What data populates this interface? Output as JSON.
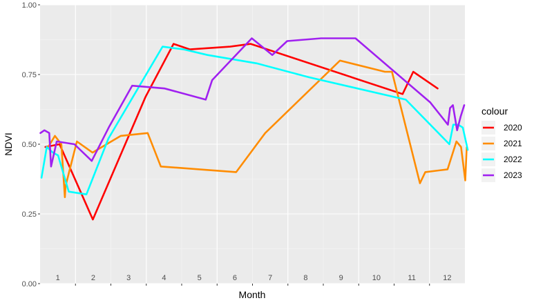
{
  "chart_data": {
    "type": "line",
    "xlabel": "Month",
    "ylabel": "NDVI",
    "xlim": [
      0.5,
      12.5
    ],
    "ylim": [
      0,
      1
    ],
    "y_ticks": [
      0.0,
      0.25,
      0.5,
      0.75,
      1.0
    ],
    "y_tick_labels": [
      "0.00",
      "0.25",
      "0.50",
      "0.75",
      "1.00"
    ],
    "x_ticks": [
      1,
      2,
      3,
      4,
      5,
      6,
      7,
      8,
      9,
      10,
      11,
      12
    ],
    "x_tick_labels": [
      "1",
      "2",
      "3",
      "4",
      "5",
      "6",
      "7",
      "8",
      "9",
      "10",
      "11",
      "12"
    ],
    "grid": true,
    "legend": {
      "title": "colour",
      "position": "right"
    },
    "series": [
      {
        "name": "2020",
        "color": "#ff0000",
        "x": [
          0.65,
          1.05,
          1.99,
          3.48,
          4.27,
          4.73,
          5.87,
          6.45,
          10.74,
          11.04,
          11.73
        ],
        "y": [
          0.49,
          0.5,
          0.23,
          0.67,
          0.86,
          0.84,
          0.85,
          0.86,
          0.68,
          0.76,
          0.7
        ]
      },
      {
        "name": "2021",
        "color": "#ff8c00",
        "x": [
          0.73,
          0.92,
          1.1,
          1.2,
          1.22,
          1.54,
          1.98,
          2.78,
          3.54,
          3.91,
          5.0,
          6.04,
          6.86,
          8.97,
          10.24,
          10.44,
          11.23,
          11.38,
          12.01,
          12.26,
          12.39,
          12.51,
          12.55
        ],
        "y": [
          0.49,
          0.53,
          0.5,
          0.31,
          0.35,
          0.51,
          0.47,
          0.53,
          0.54,
          0.42,
          0.41,
          0.4,
          0.54,
          0.8,
          0.76,
          0.76,
          0.36,
          0.4,
          0.41,
          0.51,
          0.49,
          0.37,
          0.49
        ]
      },
      {
        "name": "2022",
        "color": "#00ffff",
        "x": [
          0.54,
          0.69,
          0.86,
          1.01,
          1.31,
          1.81,
          2.43,
          3.96,
          4.56,
          5.23,
          6.62,
          8.1,
          10.83,
          12.06,
          12.17,
          12.31,
          12.44,
          12.58
        ],
        "y": [
          0.38,
          0.49,
          0.47,
          0.46,
          0.33,
          0.32,
          0.52,
          0.85,
          0.84,
          0.82,
          0.79,
          0.74,
          0.66,
          0.5,
          0.57,
          0.57,
          0.56,
          0.48
        ]
      },
      {
        "name": "2023",
        "color": "#a020f0",
        "x": [
          0.51,
          0.62,
          0.76,
          0.81,
          0.97,
          1.47,
          1.96,
          2.44,
          3.1,
          4.02,
          5.18,
          5.36,
          6.33,
          6.48,
          7.06,
          7.48,
          8.44,
          9.41,
          11.52,
          12.02,
          12.08,
          12.16,
          12.28,
          12.38,
          12.48
        ],
        "y": [
          0.54,
          0.55,
          0.54,
          0.42,
          0.51,
          0.5,
          0.44,
          0.56,
          0.71,
          0.7,
          0.66,
          0.73,
          0.86,
          0.88,
          0.82,
          0.87,
          0.88,
          0.88,
          0.65,
          0.57,
          0.63,
          0.64,
          0.55,
          0.6,
          0.64
        ]
      }
    ]
  }
}
